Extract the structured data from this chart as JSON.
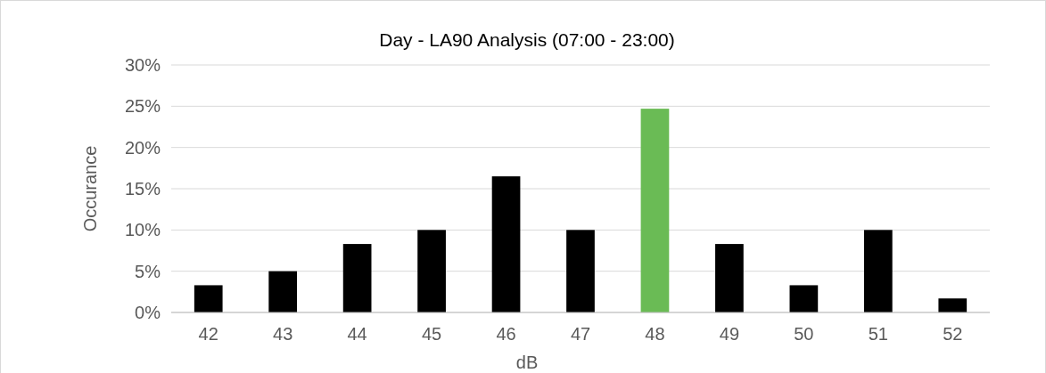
{
  "chart_data": {
    "type": "bar",
    "title": "Day - LA90 Analysis (07:00 - 23:00)",
    "xlabel": "dB",
    "ylabel": "Occurance",
    "categories": [
      "42",
      "43",
      "44",
      "45",
      "46",
      "47",
      "48",
      "49",
      "50",
      "51",
      "52"
    ],
    "values": [
      3.3,
      5,
      8.3,
      10,
      16.5,
      10,
      24.7,
      8.3,
      3.3,
      10,
      1.7
    ],
    "colors": [
      "#000000",
      "#000000",
      "#000000",
      "#000000",
      "#000000",
      "#000000",
      "#6abb55",
      "#000000",
      "#000000",
      "#000000",
      "#000000"
    ],
    "ylim": [
      0,
      30
    ],
    "yticks": [
      {
        "value": 0,
        "label": "0%"
      },
      {
        "value": 5,
        "label": "5%"
      },
      {
        "value": 10,
        "label": "10%"
      },
      {
        "value": 15,
        "label": "15%"
      },
      {
        "value": 20,
        "label": "20%"
      },
      {
        "value": 25,
        "label": "25%"
      },
      {
        "value": 30,
        "label": "30%"
      }
    ],
    "grid": "y"
  }
}
